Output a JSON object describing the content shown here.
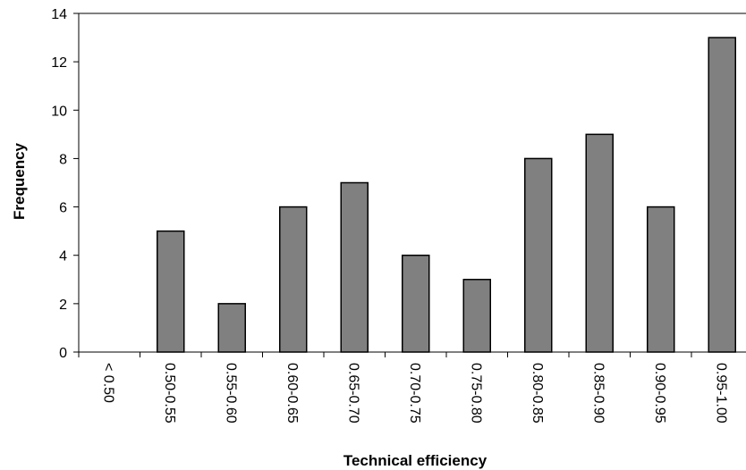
{
  "chart_data": {
    "type": "bar",
    "title": "",
    "xlabel": "Technical efficiency",
    "ylabel": "Frequency",
    "categories": [
      "< 0.50",
      "0.50-0.55",
      "0.55-0.60",
      "0.60-0.65",
      "0.65-0.70",
      "0.70-0.75",
      "0.75-0.80",
      "0.80-0.85",
      "0.85-0.90",
      "0.90-0.95",
      "0.95-1.00"
    ],
    "values": [
      0,
      5,
      2,
      6,
      7,
      4,
      3,
      8,
      9,
      6,
      13
    ],
    "ylim": [
      0,
      14
    ],
    "yticks": [
      0,
      2,
      4,
      6,
      8,
      10,
      12,
      14
    ],
    "grid": false,
    "bar_color": "#808080",
    "bar_edge_color": "#000000"
  }
}
